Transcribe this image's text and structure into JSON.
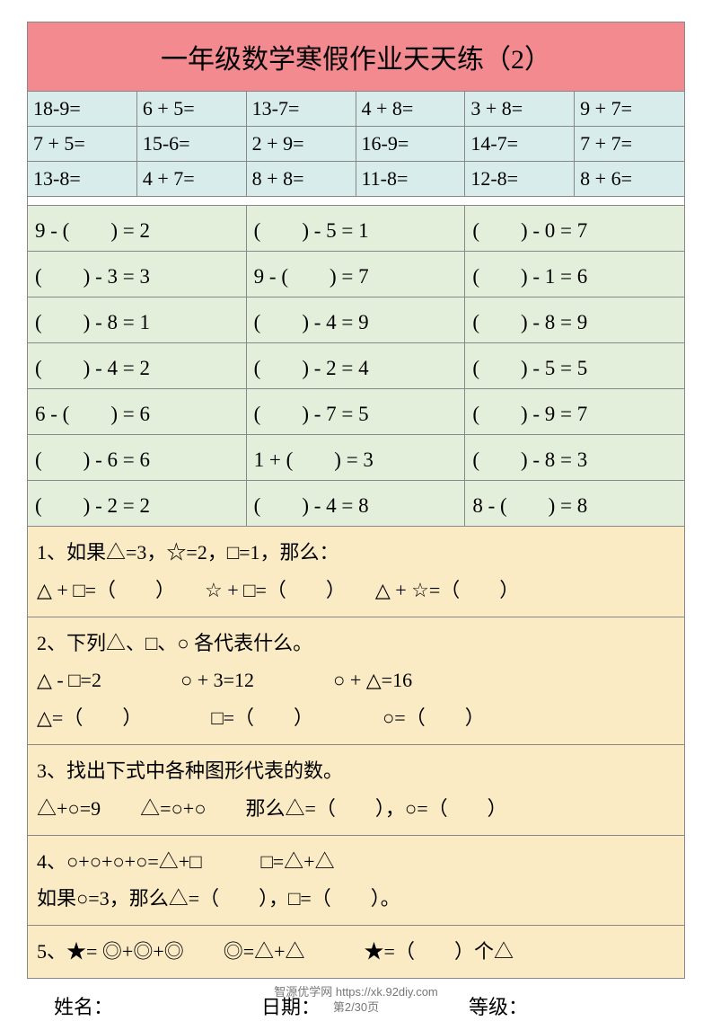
{
  "colors": {
    "title_bg": "#f28a8f",
    "sec1_bg": "#d8ecec",
    "sec2_bg": "#e4efdb",
    "sec3_bg": "#faebc5",
    "border": "#888888",
    "page_bg": "#ffffff",
    "watermark": "#777777"
  },
  "fontsizes": {
    "title_pt": 30,
    "cell_pt": 22,
    "footer_pt": 22,
    "watermark_pt": 13
  },
  "title": "一年级数学寒假作业天天练（2）",
  "section1": {
    "type": "table",
    "columns": 6,
    "rows": [
      [
        "18-9=",
        "6 + 5=",
        "13-7=",
        "4 + 8=",
        "3 + 8=",
        "9 + 7="
      ],
      [
        "7 + 5=",
        "15-6=",
        "2 + 9=",
        "16-9=",
        "14-7=",
        "7 + 7="
      ],
      [
        "13-8=",
        "4 + 7=",
        "8 + 8=",
        "11-8=",
        "12-8=",
        "8 + 6="
      ]
    ]
  },
  "section2": {
    "type": "table",
    "columns": 3,
    "rows": [
      [
        "9 - (　　) = 2",
        "(　　) - 5 = 1",
        "(　　) - 0 = 7"
      ],
      [
        "(　　) - 3 = 3",
        "9 - (　　) = 7",
        "(　　) - 1 = 6"
      ],
      [
        "(　　) - 8 = 1",
        "(　　) - 4 = 9",
        "(　　) - 8 = 9"
      ],
      [
        "(　　) - 4 = 2",
        "(　　) - 2 = 4",
        "(　　) - 5 = 5"
      ],
      [
        "6 - (　　) = 6",
        "(　　) - 7 = 5",
        "(　　) - 9 = 7"
      ],
      [
        "(　　) - 6 = 6",
        "1 + (　　) = 3",
        "(　　) - 8 = 3"
      ],
      [
        "(　　) - 2 = 2",
        "(　　) - 4 = 8",
        "8 - (　　) = 8"
      ]
    ]
  },
  "section3": {
    "blocks": [
      "1、如果△=3，☆=2，□=1，那么：\n△ + □=（　　）　　☆ + □=（　　）　　△ + ☆=（　　）",
      "2、下列△、□、○ 各代表什么。\n△ - □=2　　　　○ + 3=12　　　　○ + △=16\n△=（　　）　　　　□=（　　）　　　　○=（　　）",
      "3、找出下式中各种图形代表的数。\n△+○=9　　△=○+○　　那么△=（　　），○=（　　）",
      "4、○+○+○+○=△+□　　　□=△+△\n如果○=3，那么△=（　　），□=（　　）。",
      "5、★= ◎+◎+◎　　◎=△+△　　　★=（　　）个△"
    ]
  },
  "footer": {
    "name_label": "姓名：",
    "date_label": "日期：",
    "grade_label": "等级："
  },
  "watermark": {
    "line1": "智源优学网 https://xk.92diy.com",
    "line2": "第2/30页"
  }
}
